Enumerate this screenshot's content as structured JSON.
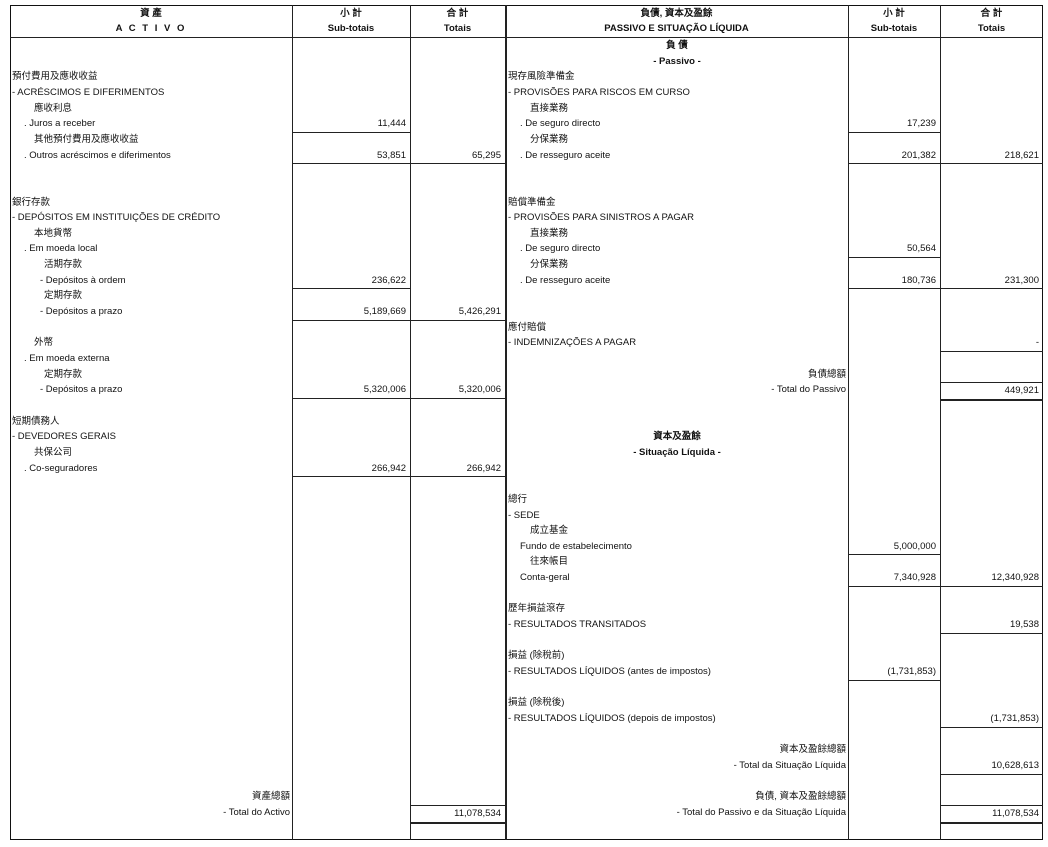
{
  "left": {
    "header": {
      "zh": "資 產",
      "pt": "A C T I V O"
    },
    "rows": [
      null,
      null,
      {
        "kind": "group",
        "label": "預付費用及應收收益"
      },
      {
        "kind": "pt",
        "label": "- ACRÉSCIMOS  E  DIFERIMENTOS"
      },
      {
        "kind": "zh1",
        "label": "應收利息"
      },
      {
        "kind": "it1",
        "label": ". Juros a receber",
        "sub": "11,444"
      },
      {
        "kind": "zh1",
        "label": "其他預付費用及應收收益"
      },
      {
        "kind": "it1",
        "label": ". Outros acréscimos e diferimentos",
        "sub": "53,851",
        "total": "65,295"
      },
      null,
      null,
      {
        "kind": "group",
        "label": "銀行存款"
      },
      {
        "kind": "pt",
        "label": "- DEPÓSITOS EM INSTITUIÇÕES DE CRÉDITO"
      },
      {
        "kind": "zh1",
        "label": "本地貨幣"
      },
      {
        "kind": "it1",
        "label": ". Em moeda local"
      },
      {
        "kind": "zh2",
        "label": "活期存款"
      },
      {
        "kind": "it2",
        "label": "- Depósitos à ordem",
        "sub": "236,622"
      },
      {
        "kind": "zh2",
        "label": "定期存款"
      },
      {
        "kind": "it2",
        "label": "- Depósitos a prazo",
        "sub": "5,189,669",
        "total": "5,426,291"
      },
      null,
      {
        "kind": "zh1",
        "label": "外幣"
      },
      {
        "kind": "it1",
        "label": ". Em moeda externa"
      },
      {
        "kind": "zh2",
        "label": "定期存款"
      },
      {
        "kind": "it2",
        "label": "- Depósitos a prazo",
        "sub": "5,320,006",
        "total": "5,320,006"
      },
      null,
      {
        "kind": "group",
        "label": "短期債務人"
      },
      {
        "kind": "pt",
        "label": "- DEVEDORES GERAIS"
      },
      {
        "kind": "zh1",
        "label": "共保公司"
      },
      {
        "kind": "it1",
        "label": ". Co-seguradores",
        "sub": "266,942",
        "total": "266,942"
      },
      null,
      null,
      null,
      null,
      null,
      null,
      null,
      null,
      null,
      null,
      null,
      null,
      null,
      null,
      null,
      null,
      null,
      null,
      null,
      null,
      {
        "kind": "right",
        "label": "資產總額"
      },
      {
        "kind": "right",
        "label": "- Total do Activo",
        "total": "11,078,534",
        "grand": true
      }
    ]
  },
  "right": {
    "header": {
      "zh": "負債, 資本及盈餘",
      "pt": "PASSIVO E SITUAÇÃO  LÍQUIDA"
    },
    "rows": [
      {
        "kind": "center",
        "label": "負 債"
      },
      {
        "kind": "center",
        "label": "- Passivo -"
      },
      {
        "kind": "group",
        "label": "現存風險準備金"
      },
      {
        "kind": "pt",
        "label": "- PROVISÕES PARA RISCOS EM CURSO"
      },
      {
        "kind": "zh1",
        "label": "直接業務"
      },
      {
        "kind": "it1",
        "label": ". De seguro directo",
        "sub": "17,239"
      },
      {
        "kind": "zh1",
        "label": "分保業務"
      },
      {
        "kind": "it1",
        "label": ". De resseguro aceite",
        "sub": "201,382",
        "total": "218,621"
      },
      null,
      null,
      {
        "kind": "group",
        "label": "賠償準備金"
      },
      {
        "kind": "pt",
        "label": "- PROVISÕES PARA SINISTROS A PAGAR"
      },
      {
        "kind": "zh1",
        "label": "直接業務"
      },
      {
        "kind": "it1",
        "label": ". De seguro directo",
        "sub": "50,564"
      },
      {
        "kind": "zh1",
        "label": "分保業務"
      },
      {
        "kind": "it1",
        "label": ". De resseguro aceite",
        "sub": "180,736",
        "total": "231,300"
      },
      null,
      null,
      {
        "kind": "group",
        "label": "應付賠償"
      },
      {
        "kind": "pt",
        "label": "- INDEMNIZAÇÕES A PAGAR",
        "total": "-"
      },
      null,
      {
        "kind": "right",
        "label": "負債總額"
      },
      {
        "kind": "right",
        "label": "- Total do Passivo",
        "total": "449,921",
        "grand": true
      },
      null,
      null,
      {
        "kind": "center",
        "label": "資本及盈餘"
      },
      {
        "kind": "center",
        "label": "- Situação Líquida -"
      },
      null,
      null,
      {
        "kind": "group",
        "label": "總行"
      },
      {
        "kind": "pt",
        "label": "- SEDE"
      },
      {
        "kind": "zh1",
        "label": "成立基金"
      },
      {
        "kind": "it1",
        "label": "Fundo de estabelecimento",
        "sub": "5,000,000"
      },
      {
        "kind": "zh1",
        "label": "往來帳目"
      },
      {
        "kind": "it1",
        "label": "Conta-geral",
        "sub": "7,340,928",
        "total": "12,340,928"
      },
      null,
      {
        "kind": "group",
        "label": "歷年損益滾存"
      },
      {
        "kind": "pt",
        "label": "- RESULTADOS TRANSITADOS",
        "total": "19,538"
      },
      null,
      {
        "kind": "group",
        "label": "損益 (除稅前)"
      },
      {
        "kind": "pt",
        "label": "- RESULTADOS LÍQUIDOS (antes de impostos)",
        "sub": "(1,731,853)"
      },
      null,
      {
        "kind": "group",
        "label": "損益 (除稅後)"
      },
      {
        "kind": "pt",
        "label": "- RESULTADOS LÍQUIDOS (depois de impostos)",
        "total": "(1,731,853)"
      },
      null,
      {
        "kind": "right",
        "label": "資本及盈餘總額"
      },
      {
        "kind": "right",
        "label": "- Total da Situação Líquida",
        "total": "10,628,613"
      },
      null,
      {
        "kind": "right",
        "label": "負債, 資本及盈餘總額"
      },
      {
        "kind": "right",
        "label": "- Total do Passivo e da Situação Líquida",
        "total": "11,078,534",
        "grand": true
      }
    ]
  },
  "columns": {
    "subtotals_zh": "小 計",
    "subtotals_pt": "Sub-totais",
    "totals_zh": "合 計",
    "totals_pt": "Totais"
  }
}
